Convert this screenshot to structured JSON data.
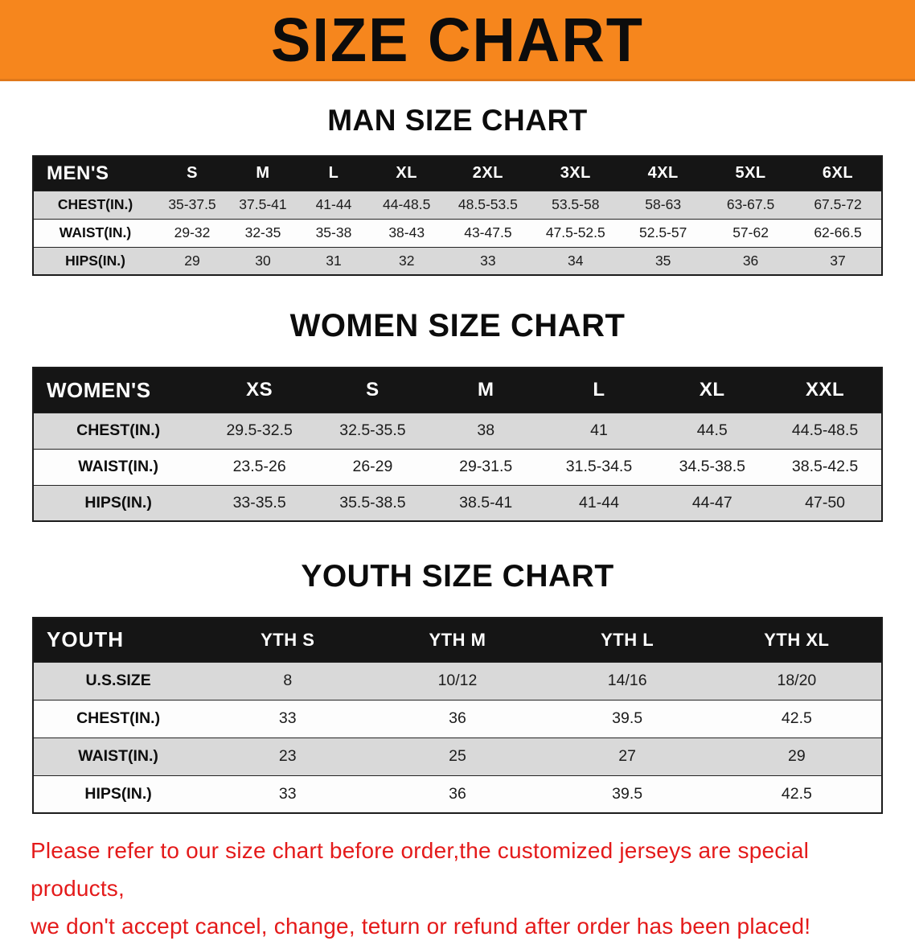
{
  "banner": {
    "title": "SIZE CHART"
  },
  "men": {
    "heading": "MAN SIZE CHART",
    "header": [
      "MEN'S",
      "S",
      "M",
      "L",
      "XL",
      "2XL",
      "3XL",
      "4XL",
      "5XL",
      "6XL"
    ],
    "rows": [
      [
        "CHEST(IN.)",
        "35-37.5",
        "37.5-41",
        "41-44",
        "44-48.5",
        "48.5-53.5",
        "53.5-58",
        "58-63",
        "63-67.5",
        "67.5-72"
      ],
      [
        "WAIST(IN.)",
        "29-32",
        "32-35",
        "35-38",
        "38-43",
        "43-47.5",
        "47.5-52.5",
        "52.5-57",
        "57-62",
        "62-66.5"
      ],
      [
        "HIPS(IN.)",
        "29",
        "30",
        "31",
        "32",
        "33",
        "34",
        "35",
        "36",
        "37"
      ]
    ]
  },
  "women": {
    "heading": "WOMEN SIZE CHART",
    "header": [
      "WOMEN'S",
      "XS",
      "S",
      "M",
      "L",
      "XL",
      "XXL"
    ],
    "rows": [
      [
        "CHEST(IN.)",
        "29.5-32.5",
        "32.5-35.5",
        "38",
        "41",
        "44.5",
        "44.5-48.5"
      ],
      [
        "WAIST(IN.)",
        "23.5-26",
        "26-29",
        "29-31.5",
        "31.5-34.5",
        "34.5-38.5",
        "38.5-42.5"
      ],
      [
        "HIPS(IN.)",
        "33-35.5",
        "35.5-38.5",
        "38.5-41",
        "41-44",
        "44-47",
        "47-50"
      ]
    ]
  },
  "youth": {
    "heading": "YOUTH SIZE CHART",
    "header": [
      "YOUTH",
      "YTH S",
      "YTH M",
      "YTH L",
      "YTH XL"
    ],
    "rows": [
      [
        "U.S.SIZE",
        "8",
        "10/12",
        "14/16",
        "18/20"
      ],
      [
        "CHEST(IN.)",
        "33",
        "36",
        "39.5",
        "42.5"
      ],
      [
        "WAIST(IN.)",
        "23",
        "25",
        "27",
        "29"
      ],
      [
        "HIPS(IN.)",
        "33",
        "36",
        "39.5",
        "42.5"
      ]
    ]
  },
  "disclaimer": {
    "line1": "Please refer to our size chart before order,the customized jerseys are special products,",
    "line2": "we don't accept cancel, change, teturn or refund after order has been placed!"
  },
  "colors": {
    "banner_orange": "#F6861D",
    "table_header_black": "#151515",
    "row_gray": "#D9D9D9",
    "row_white": "#FDFDFD",
    "disclaimer_red": "#E41A1A"
  }
}
